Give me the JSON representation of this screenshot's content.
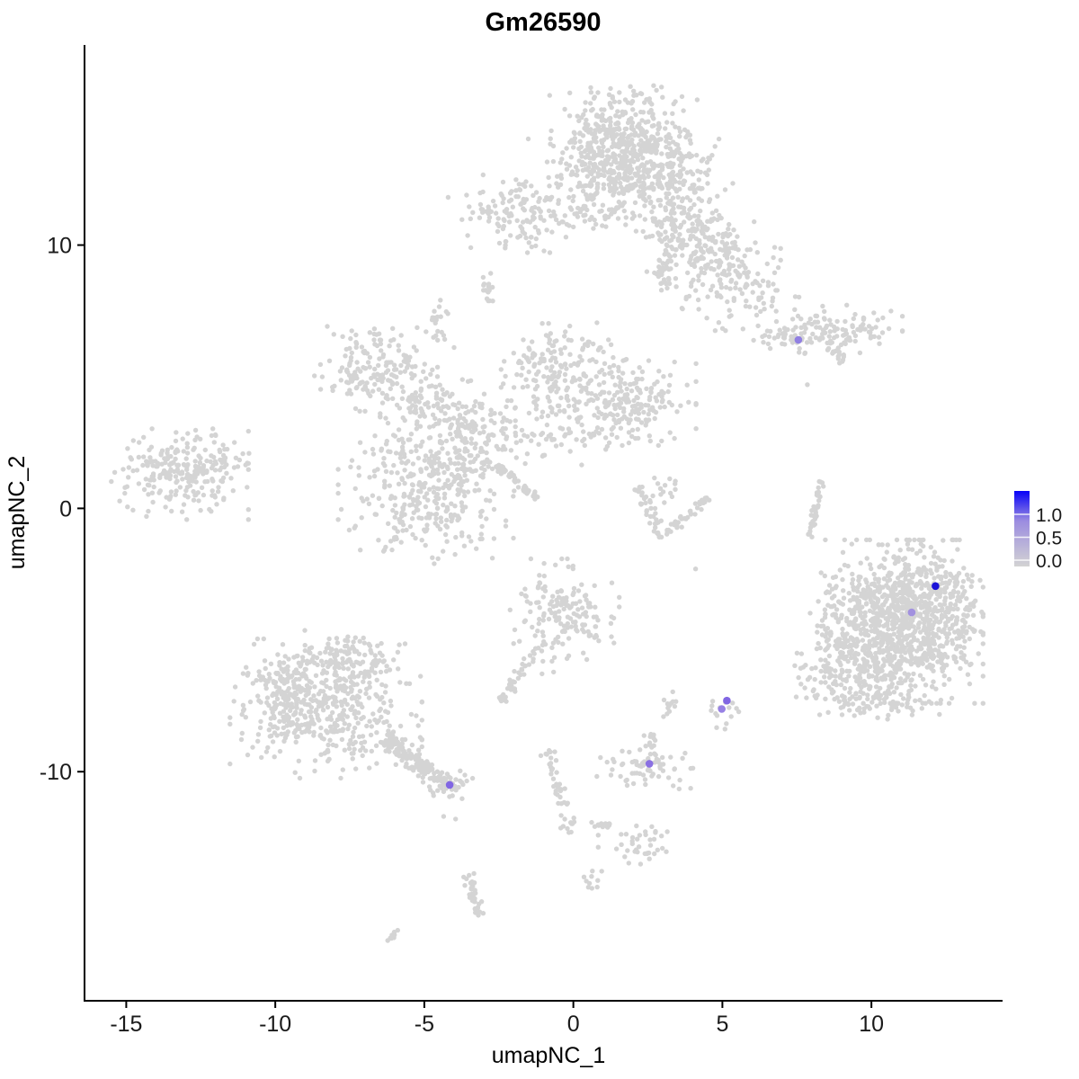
{
  "chart_data": {
    "type": "scatter",
    "subtype": "umap-feature-plot",
    "title": "Gm26590",
    "xlabel": "umapNC_1",
    "ylabel": "umapNC_2",
    "xlim": [
      -16.4,
      14.4
    ],
    "ylim": [
      -18.7,
      17.6
    ],
    "x_ticks": [
      -15,
      -10,
      -5,
      0,
      5,
      10
    ],
    "y_ticks": [
      10,
      0,
      -10
    ],
    "grid": "off",
    "background_point_color": "#d4d4d4",
    "axis_color": "#000000",
    "legend": {
      "position": "right",
      "labels": [
        "1.0",
        "0.5",
        "0.0"
      ],
      "values": [
        1.0,
        0.5,
        0.0
      ],
      "gradient_top_color": "#0702F8",
      "gradient_mid_color": "#9C8DE0",
      "gradient_bottom_color": "#D3D3D3"
    },
    "clusters": [
      [
        "g",
        1.5,
        14.1,
        1.05,
        0.85,
        330
      ],
      [
        "g",
        2.7,
        12.7,
        0.95,
        0.8,
        200
      ],
      [
        "g",
        0.9,
        12.5,
        0.65,
        0.6,
        90
      ],
      [
        "g",
        1.9,
        13.3,
        1.5,
        1.1,
        120
      ],
      [
        "g",
        3.6,
        11.1,
        0.65,
        0.65,
        80
      ],
      [
        "g",
        4.4,
        10.4,
        0.55,
        0.5,
        50
      ],
      [
        "g",
        5.0,
        9.3,
        0.85,
        0.75,
        160
      ],
      [
        "g",
        3.2,
        9.9,
        0.4,
        0.5,
        35
      ],
      [
        "l",
        2.9,
        9.4,
        3.1,
        8.3,
        0.25,
        25
      ],
      [
        "g",
        5.5,
        7.9,
        0.9,
        0.5,
        45
      ],
      [
        "g",
        0.6,
        11.2,
        0.85,
        0.35,
        45
      ],
      [
        "g",
        -1.9,
        11.4,
        1.0,
        0.55,
        120
      ],
      [
        "g",
        -1.6,
        10.4,
        0.8,
        0.3,
        25
      ],
      [
        "l",
        -3.0,
        8.9,
        -2.8,
        7.8,
        0.18,
        16
      ],
      [
        "g",
        -4.6,
        7.0,
        0.3,
        0.55,
        22
      ],
      [
        "g",
        7.3,
        6.55,
        0.7,
        0.28,
        55
      ],
      [
        "g",
        9.2,
        6.8,
        0.8,
        0.42,
        95
      ],
      [
        "l",
        8.5,
        6.1,
        9.1,
        5.6,
        0.15,
        14
      ],
      [
        "g",
        -6.5,
        5.3,
        0.95,
        0.7,
        170
      ],
      [
        "g",
        -5.1,
        3.9,
        0.6,
        0.45,
        60
      ],
      [
        "g",
        -3.9,
        2.5,
        0.85,
        0.95,
        190
      ],
      [
        "g",
        -0.7,
        5.3,
        0.75,
        0.75,
        130
      ],
      [
        "g",
        1.7,
        4.0,
        1.05,
        0.7,
        210
      ],
      [
        "g",
        1.0,
        5.9,
        0.5,
        0.5,
        25
      ],
      [
        "g",
        -4.9,
        0.2,
        1.3,
        1.0,
        270
      ],
      [
        "l",
        -2.55,
        1.65,
        -1.2,
        0.35,
        0.12,
        55
      ],
      [
        "g",
        -2.2,
        3.4,
        0.95,
        0.95,
        70
      ],
      [
        "g",
        0.3,
        2.8,
        0.8,
        0.5,
        35
      ],
      [
        "g",
        -5.9,
        2.2,
        0.5,
        0.4,
        30
      ],
      [
        "g",
        -13.2,
        1.3,
        1.0,
        0.75,
        240
      ],
      [
        "g",
        -11.4,
        1.9,
        0.5,
        0.3,
        18
      ],
      [
        "l",
        8.3,
        1.1,
        7.95,
        -1.1,
        0.12,
        35
      ],
      [
        "l",
        2.1,
        0.8,
        3.0,
        -1.05,
        0.18,
        35
      ],
      [
        "l",
        3.0,
        -1.05,
        4.5,
        0.35,
        0.18,
        40
      ],
      [
        "g",
        3.0,
        0.75,
        0.3,
        0.25,
        15
      ],
      [
        "g",
        11.1,
        -4.3,
        1.15,
        1.35,
        950
      ],
      [
        "g",
        9.5,
        -6.3,
        0.9,
        0.8,
        180
      ],
      [
        "g",
        8.8,
        -4.2,
        0.45,
        1.1,
        70
      ],
      [
        "g",
        10.4,
        -7.3,
        1.0,
        0.35,
        60
      ],
      [
        "g",
        12.6,
        -3.4,
        0.5,
        0.8,
        80
      ],
      [
        "g",
        -0.3,
        -4.1,
        0.8,
        0.95,
        170
      ],
      [
        "l",
        -1.2,
        -5.2,
        -2.4,
        -7.4,
        0.2,
        40
      ],
      [
        "g",
        -8.3,
        -7.6,
        1.4,
        1.15,
        420
      ],
      [
        "g",
        -7.6,
        -5.9,
        0.85,
        0.55,
        130
      ],
      [
        "g",
        -9.7,
        -7.0,
        0.6,
        0.8,
        90
      ],
      [
        "l",
        -6.3,
        -8.7,
        -4.5,
        -10.3,
        0.3,
        130
      ],
      [
        "g",
        -4.3,
        -10.45,
        0.4,
        0.28,
        45
      ],
      [
        "l",
        -0.85,
        -9.2,
        -0.1,
        -12.3,
        0.22,
        45
      ],
      [
        "l",
        0.45,
        -11.85,
        1.2,
        -12.1,
        0.15,
        14
      ],
      [
        "g",
        2.1,
        -12.75,
        0.55,
        0.38,
        40
      ],
      [
        "g",
        2.4,
        -9.85,
        0.7,
        0.38,
        70
      ],
      [
        "g",
        2.55,
        -8.75,
        0.18,
        0.3,
        10
      ],
      [
        "g",
        3.35,
        -7.55,
        0.2,
        0.32,
        12
      ],
      [
        "g",
        5.05,
        -7.75,
        0.22,
        0.38,
        14
      ],
      [
        "l",
        -3.55,
        -13.9,
        -3.15,
        -15.5,
        0.18,
        35
      ],
      [
        "l",
        -6.2,
        -16.35,
        -5.85,
        -15.95,
        0.1,
        9
      ],
      [
        "g",
        0.65,
        -14.0,
        0.18,
        0.3,
        10
      ]
    ],
    "singles": [
      [
        4.1,
        -2.3
      ],
      [
        8.8,
        -2.6
      ],
      [
        8.75,
        -3.7
      ],
      [
        7.85,
        4.7
      ],
      [
        4.65,
        -7.5
      ],
      [
        2.96,
        2.56
      ],
      [
        -4.35,
        -11.7
      ],
      [
        -3.95,
        -11.8
      ]
    ],
    "expressing_cells": [
      {
        "x": 7.55,
        "y": 6.4,
        "value": 0.6,
        "color": "#9180E2"
      },
      {
        "x": 12.15,
        "y": -2.95,
        "value": 1.2,
        "color": "#1C13D8"
      },
      {
        "x": 11.35,
        "y": -3.95,
        "value": 0.45,
        "color": "#A291DF"
      },
      {
        "x": 5.15,
        "y": -7.3,
        "value": 0.7,
        "color": "#8166E3"
      },
      {
        "x": 4.98,
        "y": -7.62,
        "value": 0.55,
        "color": "#9781E4"
      },
      {
        "x": 2.55,
        "y": -9.7,
        "value": 0.6,
        "color": "#8A70E2"
      },
      {
        "x": -4.15,
        "y": -10.5,
        "value": 0.65,
        "color": "#8166E3"
      }
    ]
  }
}
